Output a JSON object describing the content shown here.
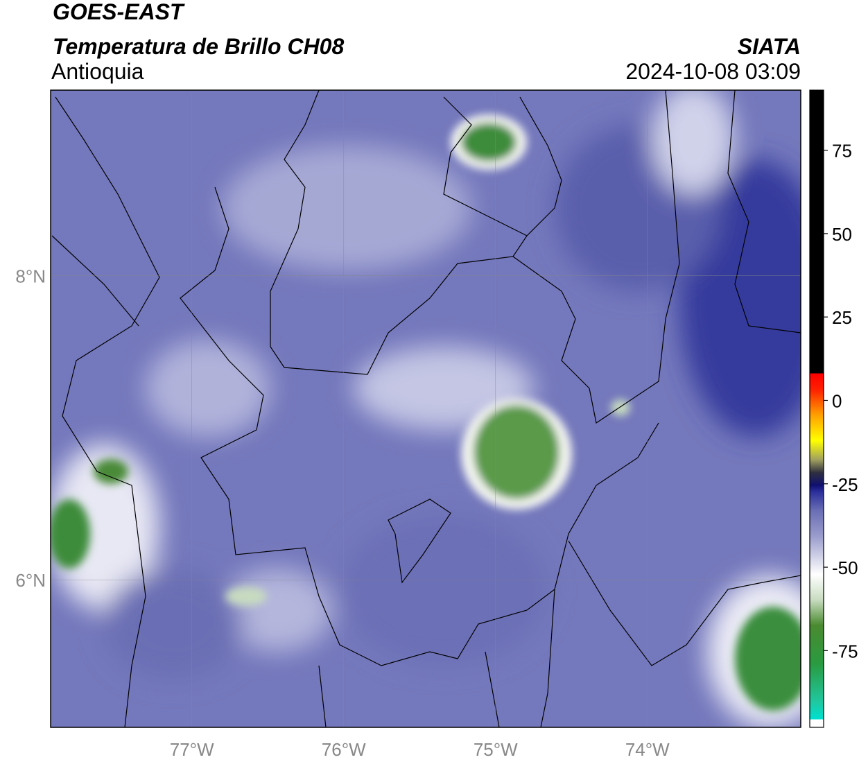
{
  "map": {
    "title": "GOES-EAST",
    "subtitle": "Temperatura de Brillo CH08",
    "region": "Antioquia",
    "source": "SIATA",
    "timestamp": "2024-10-08 03:09",
    "xlim": [
      -77.93,
      -72.99
    ],
    "ylim": [
      5.03,
      9.22
    ],
    "xticks": [
      {
        "value": -77,
        "label": "77°W"
      },
      {
        "value": -76,
        "label": "76°W"
      },
      {
        "value": -75,
        "label": "75°W"
      },
      {
        "value": -74,
        "label": "74°W"
      }
    ],
    "yticks": [
      {
        "value": 6,
        "label": "6°N"
      },
      {
        "value": 8,
        "label": "8°N"
      }
    ],
    "colorbar": {
      "lim": [
        -98,
        93
      ],
      "ticks": [
        -75,
        -50,
        -25,
        0,
        25,
        50,
        75
      ]
    }
  }
}
